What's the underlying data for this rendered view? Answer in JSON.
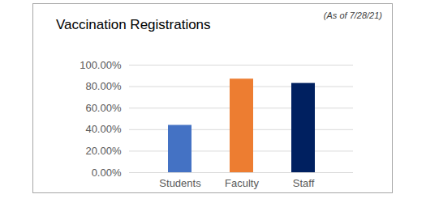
{
  "chart_data": {
    "type": "bar",
    "title": "Vaccination Registrations",
    "subtitle": "(As of 7/28/21)",
    "categories": [
      "Students",
      "Faculty",
      "Staff"
    ],
    "values": [
      44,
      87,
      83
    ],
    "colors": [
      "#4472c4",
      "#ed7d31",
      "#002060"
    ],
    "ylim": [
      0,
      100
    ],
    "yticks": [
      {
        "value": 0,
        "label": "0.00%"
      },
      {
        "value": 20,
        "label": "20.00%"
      },
      {
        "value": 40,
        "label": "40.00%"
      },
      {
        "value": 60,
        "label": "60.00%"
      },
      {
        "value": 80,
        "label": "80.00%"
      },
      {
        "value": 100,
        "label": "100.00%"
      }
    ],
    "grid": true
  }
}
